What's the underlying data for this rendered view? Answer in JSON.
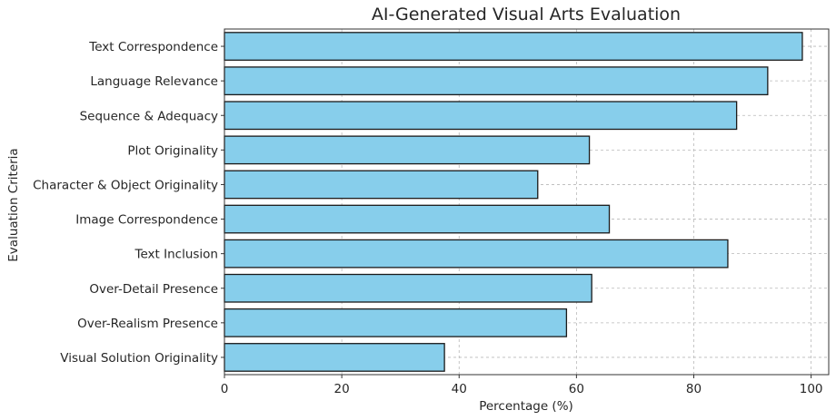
{
  "chart_data": {
    "type": "bar",
    "orientation": "horizontal",
    "title": "AI-Generated Visual Arts Evaluation",
    "xlabel": "Percentage (%)",
    "ylabel": "Evaluation Criteria",
    "categories": [
      "Text Correspondence",
      "Language Relevance",
      "Sequence & Adequacy",
      "Plot Originality",
      "Character & Object Originality",
      "Image Correspondence",
      "Text Inclusion",
      "Over-Detail Presence",
      "Over-Realism Presence",
      "Visual Solution Originality"
    ],
    "values": [
      98.5,
      92.6,
      87.3,
      62.2,
      53.4,
      65.6,
      85.8,
      62.6,
      58.3,
      37.5
    ],
    "xlim": [
      0,
      103
    ],
    "xticks": [
      "0",
      "20",
      "40",
      "60",
      "80",
      "100"
    ],
    "grid": true,
    "bar_color": "#87CEEB",
    "edge_color": "#1a1a1a"
  }
}
